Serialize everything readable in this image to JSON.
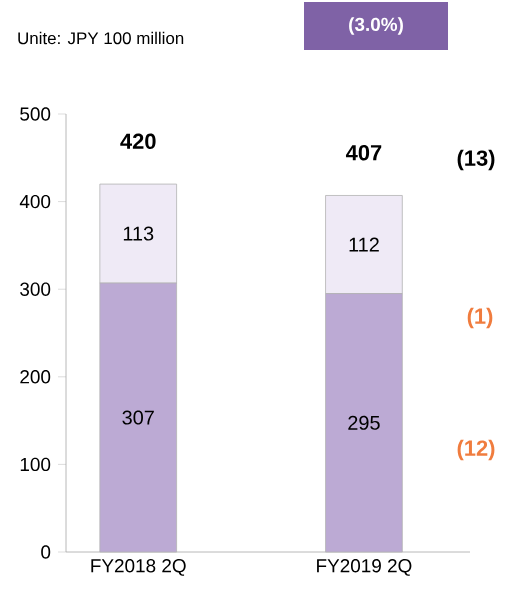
{
  "chart_data": {
    "type": "bar",
    "stacked": true,
    "categories": [
      "FY2018 2Q",
      "FY2019 2Q"
    ],
    "series": [
      {
        "color": "#bcaad4",
        "values": [
          307,
          295
        ]
      },
      {
        "color": "#efeaf6",
        "values": [
          113,
          112
        ]
      }
    ],
    "ylim": [
      0,
      500
    ],
    "yticks": [
      0,
      100,
      200,
      300,
      400,
      500
    ],
    "data_labels": true,
    "totals": [
      "420",
      "407"
    ],
    "annotations": [
      "Unite: JPY 100 million",
      "(3.0%)",
      "(13)",
      "(1)",
      "(12)"
    ]
  }
}
